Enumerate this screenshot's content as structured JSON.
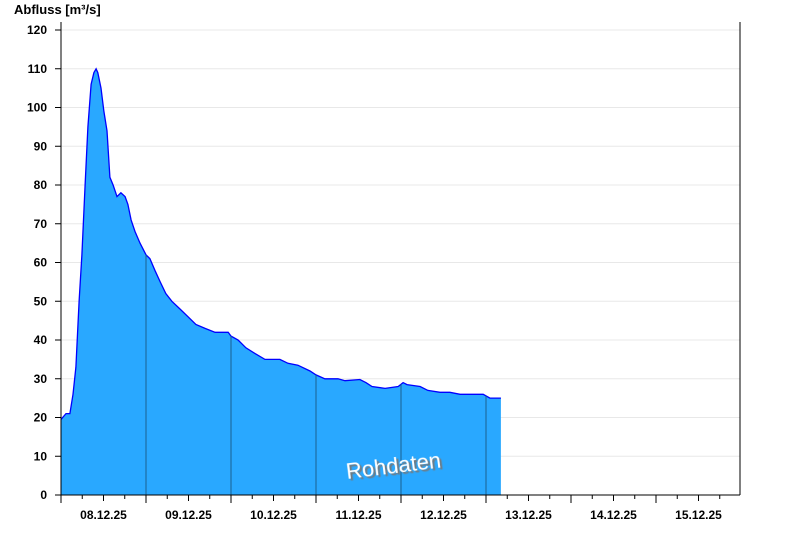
{
  "chart_data": {
    "type": "area",
    "ylabel": "Abfluss [m³/s]",
    "xlabel": "",
    "ylim": [
      0,
      120
    ],
    "yticks": [
      0,
      10,
      20,
      30,
      40,
      50,
      60,
      70,
      80,
      90,
      100,
      110,
      120
    ],
    "x_unit": "hours since 08.12.25 00:00",
    "xlim_days": [
      "08.12.25",
      "15.12.25"
    ],
    "xtick_labels": [
      "08.12.25",
      "09.12.25",
      "10.12.25",
      "11.12.25",
      "12.12.25",
      "13.12.25",
      "14.12.25",
      "15.12.25"
    ],
    "grid": true,
    "annotation": "Rohdaten",
    "fill_color": "#29a8ff",
    "line_color": "#0000ff",
    "series": [
      {
        "x": [
          0,
          1.4,
          2.5,
          3.4,
          4.2,
          5.1,
          5.9,
          6.8,
          7.6,
          8.5,
          9.3,
          9.9,
          10.4,
          11.3,
          12.1,
          13,
          13.8,
          14.7,
          15.8,
          16.9,
          18.1,
          18.9,
          19.8,
          20.9,
          22.3,
          24,
          25.1,
          26.5,
          28,
          29.6,
          31.3,
          33.6,
          35.9,
          38.1,
          40.7,
          43.5,
          47.2,
          48,
          50,
          52.2,
          54.8,
          57.6,
          61.8,
          64.1,
          66.9,
          70.3,
          72,
          74.5,
          78.2,
          80.2,
          84.4,
          86.1,
          87.8,
          91.5,
          95.2,
          96.6,
          97.7,
          101.4,
          103.6,
          107,
          109.8,
          112.7,
          115.5,
          119.2,
          121.1,
          124.2
        ],
        "values": [
          19.5,
          21,
          21,
          26,
          33,
          50,
          62,
          80,
          95,
          106,
          109,
          110,
          109,
          105,
          99,
          94,
          82,
          80,
          77,
          78,
          77,
          75,
          71,
          68,
          65,
          62,
          61,
          58,
          55,
          52,
          50,
          48,
          46,
          44,
          43,
          42,
          42,
          41,
          40,
          38,
          36.5,
          35,
          35,
          34,
          33.5,
          32,
          31,
          30,
          30,
          29.5,
          29.8,
          29,
          28,
          27.5,
          28,
          29,
          28.5,
          28,
          27,
          26.5,
          26.5,
          26,
          26,
          26,
          25,
          25
        ]
      }
    ]
  }
}
